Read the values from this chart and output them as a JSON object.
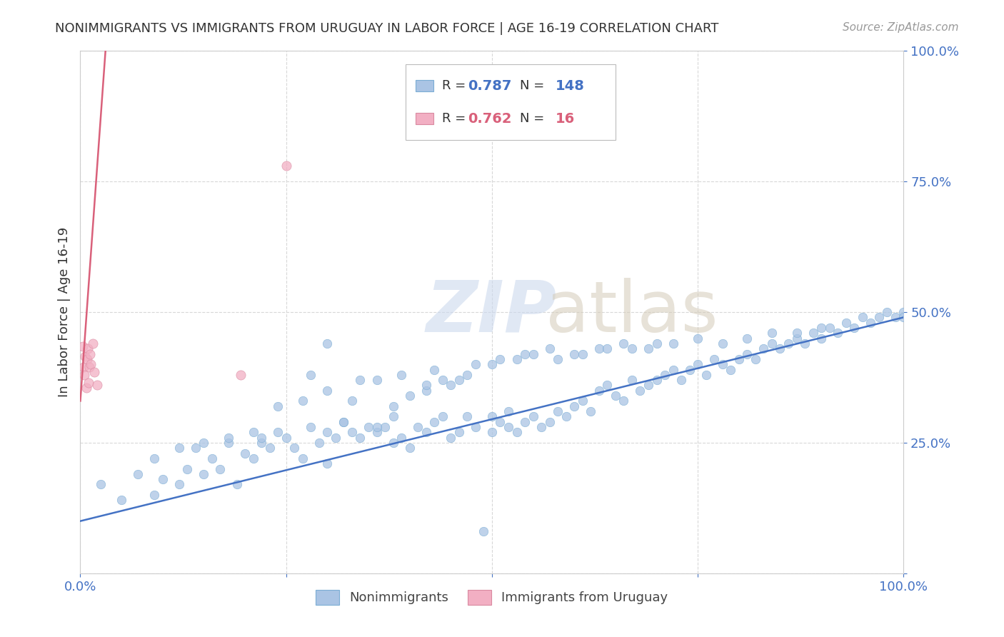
{
  "title": "NONIMMIGRANTS VS IMMIGRANTS FROM URUGUAY IN LABOR FORCE | AGE 16-19 CORRELATION CHART",
  "source": "Source: ZipAtlas.com",
  "ylabel": "In Labor Force | Age 16-19",
  "xlim": [
    0.0,
    1.0
  ],
  "ylim": [
    0.0,
    1.0
  ],
  "xticks": [
    0.0,
    0.25,
    0.5,
    0.75,
    1.0
  ],
  "xtick_labels": [
    "0.0%",
    "",
    "",
    "",
    "100.0%"
  ],
  "yticks": [
    0.0,
    0.25,
    0.5,
    0.75,
    1.0
  ],
  "ytick_labels_right": [
    "",
    "25.0%",
    "50.0%",
    "75.0%",
    "100.0%"
  ],
  "nonimmigrant_color": "#aac4e4",
  "immigrant_color": "#f2afc3",
  "nonimmigrant_line_color": "#4472c4",
  "immigrant_line_color": "#d9607a",
  "R_nonimmigrant": "0.787",
  "N_nonimmigrant": "148",
  "R_immigrant": "0.762",
  "N_immigrant": "16",
  "watermark_zip": "ZIP",
  "watermark_atlas": "atlas",
  "background_color": "#ffffff",
  "grid_color": "#d8d8d8",
  "nonimmigrant_line": [
    0.0,
    0.1,
    1.0,
    0.49
  ],
  "immigrant_line": [
    0.0,
    0.33,
    0.031,
    1.01
  ],
  "nonimmigrant_x": [
    0.025,
    0.05,
    0.07,
    0.09,
    0.1,
    0.12,
    0.13,
    0.14,
    0.15,
    0.16,
    0.17,
    0.18,
    0.19,
    0.2,
    0.21,
    0.22,
    0.23,
    0.24,
    0.25,
    0.26,
    0.27,
    0.28,
    0.29,
    0.3,
    0.31,
    0.32,
    0.33,
    0.34,
    0.35,
    0.36,
    0.37,
    0.38,
    0.38,
    0.39,
    0.4,
    0.41,
    0.42,
    0.43,
    0.44,
    0.45,
    0.46,
    0.47,
    0.48,
    0.49,
    0.5,
    0.5,
    0.51,
    0.52,
    0.52,
    0.53,
    0.54,
    0.55,
    0.56,
    0.57,
    0.58,
    0.59,
    0.6,
    0.61,
    0.62,
    0.63,
    0.64,
    0.65,
    0.66,
    0.67,
    0.68,
    0.69,
    0.7,
    0.71,
    0.72,
    0.73,
    0.74,
    0.75,
    0.76,
    0.77,
    0.78,
    0.79,
    0.8,
    0.81,
    0.82,
    0.83,
    0.84,
    0.85,
    0.86,
    0.87,
    0.88,
    0.89,
    0.9,
    0.91,
    0.92,
    0.93,
    0.94,
    0.95,
    0.96,
    0.97,
    0.98,
    0.99,
    1.0,
    1.0,
    0.47,
    0.3,
    0.33,
    0.36,
    0.39,
    0.42,
    0.45,
    0.48,
    0.51,
    0.54,
    0.57,
    0.6,
    0.63,
    0.66,
    0.69,
    0.72,
    0.75,
    0.78,
    0.81,
    0.84,
    0.87,
    0.9,
    0.24,
    0.27,
    0.3,
    0.09,
    0.12,
    0.15,
    0.18,
    0.21,
    0.3,
    0.28,
    0.32,
    0.34,
    0.43,
    0.46,
    0.38,
    0.36,
    0.22,
    0.4,
    0.44,
    0.42,
    0.5,
    0.53,
    0.55,
    0.58,
    0.61,
    0.64,
    0.67,
    0.7
  ],
  "nonimmigrant_y": [
    0.17,
    0.14,
    0.19,
    0.15,
    0.18,
    0.17,
    0.2,
    0.24,
    0.19,
    0.22,
    0.2,
    0.25,
    0.17,
    0.23,
    0.22,
    0.25,
    0.24,
    0.27,
    0.26,
    0.24,
    0.22,
    0.28,
    0.25,
    0.27,
    0.26,
    0.29,
    0.27,
    0.26,
    0.28,
    0.27,
    0.28,
    0.25,
    0.3,
    0.26,
    0.24,
    0.28,
    0.27,
    0.29,
    0.3,
    0.26,
    0.27,
    0.3,
    0.28,
    0.08,
    0.27,
    0.3,
    0.29,
    0.28,
    0.31,
    0.27,
    0.29,
    0.3,
    0.28,
    0.29,
    0.31,
    0.3,
    0.32,
    0.33,
    0.31,
    0.35,
    0.36,
    0.34,
    0.33,
    0.37,
    0.35,
    0.36,
    0.37,
    0.38,
    0.39,
    0.37,
    0.39,
    0.4,
    0.38,
    0.41,
    0.4,
    0.39,
    0.41,
    0.42,
    0.41,
    0.43,
    0.44,
    0.43,
    0.44,
    0.45,
    0.44,
    0.46,
    0.45,
    0.47,
    0.46,
    0.48,
    0.47,
    0.49,
    0.48,
    0.49,
    0.5,
    0.49,
    0.5,
    0.49,
    0.38,
    0.44,
    0.33,
    0.37,
    0.38,
    0.35,
    0.36,
    0.4,
    0.41,
    0.42,
    0.43,
    0.42,
    0.43,
    0.44,
    0.43,
    0.44,
    0.45,
    0.44,
    0.45,
    0.46,
    0.46,
    0.47,
    0.32,
    0.33,
    0.35,
    0.22,
    0.24,
    0.25,
    0.26,
    0.27,
    0.21,
    0.38,
    0.29,
    0.37,
    0.39,
    0.37,
    0.32,
    0.28,
    0.26,
    0.34,
    0.37,
    0.36,
    0.4,
    0.41,
    0.42,
    0.41,
    0.42,
    0.43,
    0.43,
    0.44
  ],
  "immigrant_x": [
    0.003,
    0.004,
    0.005,
    0.006,
    0.007,
    0.008,
    0.009,
    0.01,
    0.011,
    0.012,
    0.013,
    0.015,
    0.017,
    0.02,
    0.195,
    0.25
  ],
  "immigrant_y": [
    0.435,
    0.395,
    0.38,
    0.415,
    0.355,
    0.41,
    0.43,
    0.365,
    0.395,
    0.42,
    0.4,
    0.44,
    0.385,
    0.36,
    0.38,
    0.78
  ]
}
